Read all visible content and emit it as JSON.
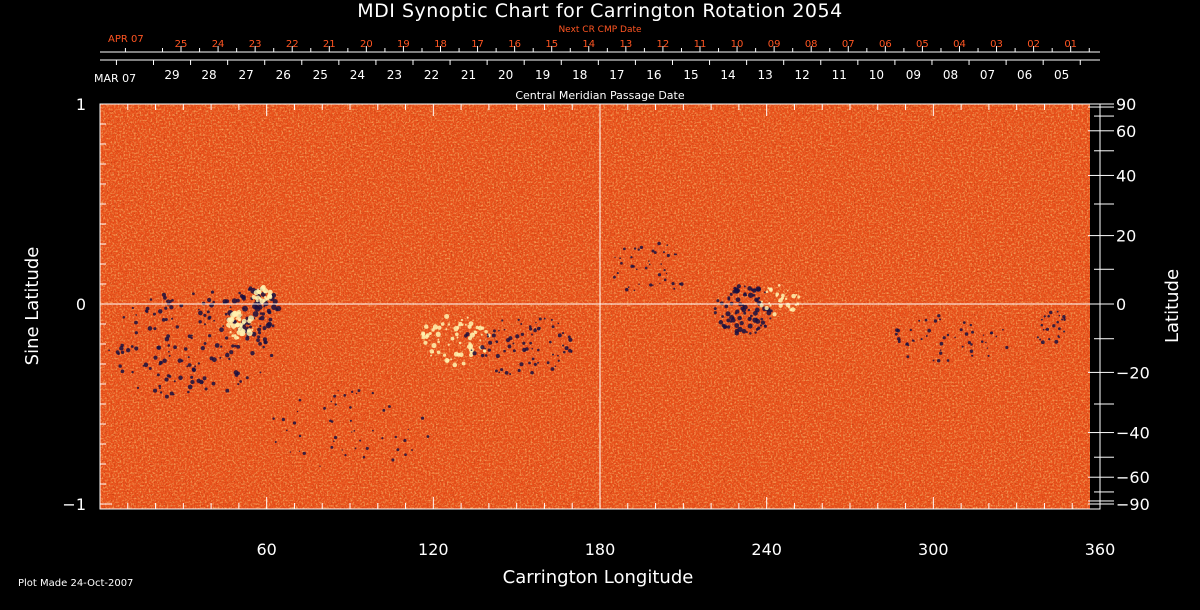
{
  "chart_data": {
    "type": "heatmap",
    "title": "MDI Synoptic Chart for Carrington Rotation 2054",
    "xlabel": "Carrington Longitude",
    "ylabel_left": "Sine Latitude",
    "ylabel_right": "Latitude",
    "x_range": [
      0,
      360
    ],
    "x_ticks": [
      "60",
      "120",
      "180",
      "240",
      "300",
      "360"
    ],
    "y_range": [
      -1,
      1
    ],
    "y_ticks_left": [
      "1",
      "0",
      "−1"
    ],
    "y_ticks_right": [
      "90",
      "60",
      "40",
      "20",
      "0",
      "−20",
      "−40",
      "−60",
      "−90"
    ],
    "next_cr_axis": {
      "label": "Next CR CMP Date",
      "month_label": "APR 07",
      "dates": [
        "25",
        "24",
        "23",
        "22",
        "21",
        "20",
        "19",
        "18",
        "17",
        "16",
        "15",
        "14",
        "13",
        "12",
        "11",
        "10",
        "09",
        "08",
        "07",
        "06",
        "05",
        "04",
        "03",
        "02",
        "01"
      ]
    },
    "cmp_axis": {
      "label": "Central Meridian Passage Date",
      "month_label": "MAR 07",
      "dates": [
        "29",
        "28",
        "27",
        "26",
        "25",
        "24",
        "23",
        "22",
        "21",
        "20",
        "19",
        "18",
        "17",
        "16",
        "15",
        "14",
        "13",
        "12",
        "11",
        "10",
        "09",
        "08",
        "07",
        "06",
        "05"
      ]
    },
    "grid_lines": {
      "x": [
        180
      ],
      "y": [
        0
      ]
    },
    "colors": {
      "background": "#000000",
      "field": "#e8501a",
      "positive": "#fff3b0",
      "negative": "#1a1040",
      "next_cr_text": "#ff5522",
      "axes": "#ffffff"
    }
  },
  "footer": "Plot Made 24-Oct-2007"
}
